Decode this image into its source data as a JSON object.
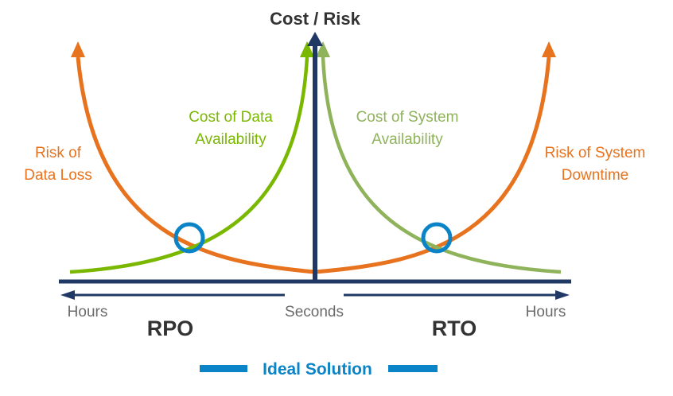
{
  "title": "Cost / Risk",
  "curves": {
    "risk_data_loss": {
      "line1": "Risk of",
      "line2": "Data Loss"
    },
    "cost_data_availability": {
      "line1": "Cost of Data",
      "line2": "Availability"
    },
    "cost_system_availability": {
      "line1": "Cost of System",
      "line2": "Availability"
    },
    "risk_system_downtime": {
      "line1": "Risk of System",
      "line2": "Downtime"
    }
  },
  "axis": {
    "left_end": "Hours",
    "center": "Seconds",
    "right_end": "Hours"
  },
  "sections": {
    "left": "RPO",
    "right": "RTO"
  },
  "legend": {
    "label": "Ideal Solution"
  },
  "colors": {
    "navy": "#1f3864",
    "orange": "#e8731f",
    "green": "#7ab800",
    "light_green": "#8fb35a",
    "blue": "#0b84c7",
    "gray": "#6b6b6b",
    "dark_text": "#333333"
  }
}
